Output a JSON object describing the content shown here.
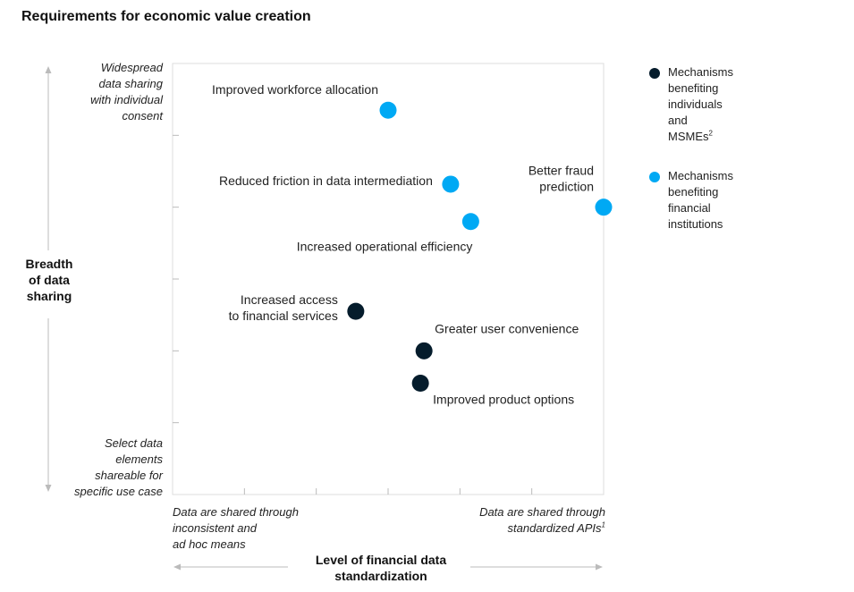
{
  "title": "Requirements for economic value creation",
  "y_axis": {
    "title_lines": [
      "Breadth",
      "of data",
      "sharing"
    ],
    "top_label_lines": [
      "Widespread",
      "data sharing",
      "with individual",
      "consent"
    ],
    "bottom_label_lines": [
      "Select data",
      "elements",
      "shareable for",
      "specific use case"
    ]
  },
  "x_axis": {
    "title_lines": [
      "Level of financial data",
      "standardization"
    ],
    "left_label_lines": [
      "Data are shared through",
      "inconsistent and",
      "ad hoc means"
    ],
    "right_label_lines": [
      "Data are shared through",
      "standardized APIs"
    ],
    "right_label_sup": "1"
  },
  "legend": [
    {
      "label_lines": [
        "Mechanisms",
        "benefiting",
        "individuals",
        "and MSMEs"
      ],
      "sup": "2",
      "color": "#051c2c"
    },
    {
      "label_lines": [
        "Mechanisms",
        "benefiting",
        "financial",
        "institutions"
      ],
      "sup": "",
      "color": "#00a9f4"
    }
  ],
  "colors": {
    "individuals": "#051c2c",
    "institutions": "#00a9f4",
    "axis": "#bbbbbb"
  },
  "chart_data": {
    "type": "scatter",
    "xlim": [
      0,
      6
    ],
    "ylim": [
      0,
      6
    ],
    "grid": false,
    "title": "Requirements for economic value creation",
    "xlabel": "Level of financial data standardization",
    "ylabel": "Breadth of data sharing",
    "series": [
      {
        "name": "Mechanisms benefiting individuals and MSMEs",
        "color": "#051c2c",
        "points": [
          {
            "label": "Increased access to financial services",
            "label_lines": [
              "Increased access",
              "to financial services"
            ],
            "x": 2.55,
            "y": 2.55,
            "anchor": "left"
          },
          {
            "label": "Greater user convenience",
            "label_lines": [
              "Greater user convenience"
            ],
            "x": 3.5,
            "y": 2.0,
            "anchor": "above-right"
          },
          {
            "label": "Improved product options",
            "label_lines": [
              "Improved product options"
            ],
            "x": 3.45,
            "y": 1.55,
            "anchor": "below-right"
          }
        ]
      },
      {
        "name": "Mechanisms benefiting financial institutions",
        "color": "#00a9f4",
        "points": [
          {
            "label": "Improved workforce allocation",
            "label_lines": [
              "Improved workforce allocation"
            ],
            "x": 3.0,
            "y": 5.35,
            "anchor": "above-left"
          },
          {
            "label": "Reduced friction in data intermediation",
            "label_lines": [
              "Reduced friction in data intermediation"
            ],
            "x": 3.87,
            "y": 4.32,
            "anchor": "left"
          },
          {
            "label": "Increased operational efficiency",
            "label_lines": [
              "Increased operational efficiency"
            ],
            "x": 4.15,
            "y": 3.8,
            "anchor": "below-left"
          },
          {
            "label": "Better fraud prediction",
            "label_lines": [
              "Better fraud",
              "prediction"
            ],
            "x": 6.0,
            "y": 4.0,
            "anchor": "above-left"
          }
        ]
      }
    ]
  }
}
